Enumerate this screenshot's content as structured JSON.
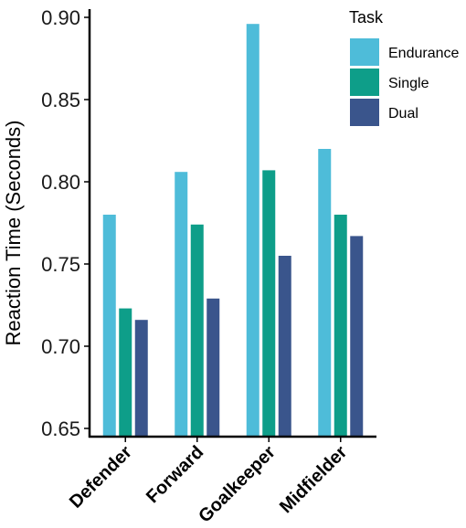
{
  "chart_data": {
    "type": "bar",
    "categories": [
      "Defender",
      "Forward",
      "Goalkeeper",
      "Midfielder"
    ],
    "series": [
      {
        "name": "Endurance",
        "color": "#4EBCD9",
        "values": [
          0.78,
          0.806,
          0.896,
          0.82
        ]
      },
      {
        "name": "Single",
        "color": "#0E9E89",
        "values": [
          0.723,
          0.774,
          0.807,
          0.78
        ]
      },
      {
        "name": "Dual",
        "color": "#3A558C",
        "values": [
          0.716,
          0.729,
          0.755,
          0.767
        ]
      }
    ],
    "title": "",
    "xlabel": "",
    "ylabel": "Reaction Time (Seconds)",
    "ylim": [
      0.645,
      0.905
    ],
    "yticks": [
      0.65,
      0.7,
      0.75,
      0.8,
      0.85,
      0.9
    ],
    "ytick_labels": [
      "0.65",
      "0.70",
      "0.75",
      "0.80",
      "0.85",
      "0.90"
    ],
    "legend_title": "Task",
    "legend_position": "top-right",
    "grid": false
  }
}
